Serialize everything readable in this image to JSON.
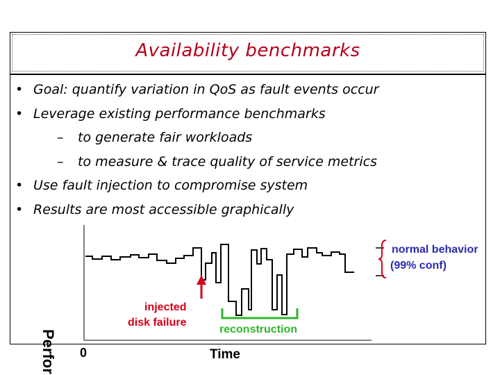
{
  "slide": {
    "title": "Availability benchmarks",
    "bullets": [
      {
        "level": 1,
        "text": "Goal: quantify variation in QoS as fault events occur"
      },
      {
        "level": 1,
        "text": "Leverage existing performance benchmarks"
      },
      {
        "level": 2,
        "text": "to generate fair workloads"
      },
      {
        "level": 2,
        "text": "to measure & trace quality of service metrics"
      },
      {
        "level": 1,
        "text": "Use fault injection to compromise system"
      },
      {
        "level": 1,
        "text": "Results are most accessible graphically"
      }
    ],
    "bullet_symbol": "•",
    "dash_symbol": "–"
  },
  "chart_data": {
    "type": "line",
    "xlabel": "Time",
    "ylabel": "Perfor",
    "x_tick_labels": [
      "0"
    ],
    "annotations": {
      "normal_behavior": [
        "normal behavior",
        "(99% conf)"
      ],
      "injected_failure": [
        "injected",
        "disk failure"
      ],
      "reconstruction": "reconstruction"
    },
    "colors": {
      "line": "#000000",
      "band": "#000000",
      "fault": "#d4001a",
      "reconstruction": "#2fb52a",
      "brace": "#d4001a"
    }
  }
}
